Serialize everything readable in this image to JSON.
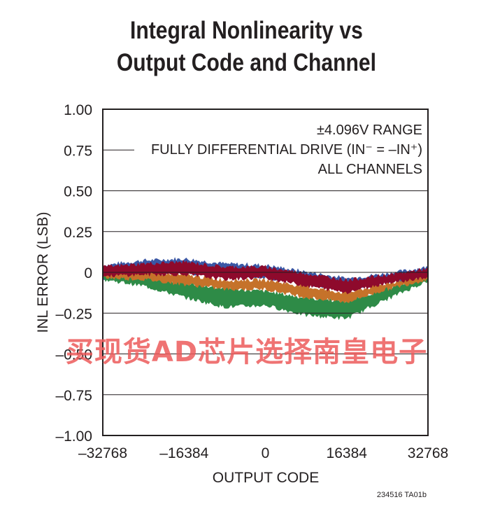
{
  "chart_data": {
    "type": "area",
    "title_lines": [
      "Integral Nonlinearity vs",
      "Output Code and Channel"
    ],
    "xlabel": "OUTPUT CODE",
    "ylabel": "INL ERROR (LSB)",
    "xlim": [
      -32768,
      32768
    ],
    "ylim": [
      -1.0,
      1.0
    ],
    "x_ticks": [
      -32768,
      -16384,
      0,
      16384,
      32768
    ],
    "x_tick_labels": [
      "–32768",
      "–16384",
      "0",
      "16384",
      "32768"
    ],
    "y_ticks": [
      1.0,
      0.75,
      0.5,
      0.25,
      0,
      -0.25,
      -0.5,
      -0.75,
      -1.0
    ],
    "y_tick_labels": [
      "1.00",
      "0.75",
      "0.50",
      "0.25",
      "0",
      "–0.25",
      "–0.50",
      "–0.75",
      "–1.00"
    ],
    "grid": true,
    "annotation_lines": [
      "±4.096V RANGE",
      "FULLY DIFFERENTIAL DRIVE (IN⁻ = –IN⁺)",
      "ALL CHANNELS"
    ],
    "series": [
      {
        "color": "#3a57a5",
        "x": [
          -32768,
          -24576,
          -16384,
          -8192,
          0,
          8192,
          16384,
          24576,
          32768
        ],
        "upper": [
          0.04,
          0.07,
          0.08,
          0.05,
          0.04,
          0.0,
          -0.04,
          -0.01,
          0.03
        ],
        "lower": [
          -0.04,
          -0.01,
          0.0,
          -0.02,
          -0.03,
          -0.07,
          -0.1,
          -0.06,
          -0.03
        ]
      },
      {
        "color": "#2e8b47",
        "x": [
          -32768,
          -24576,
          -16384,
          -8192,
          0,
          8192,
          16384,
          24576,
          32768
        ],
        "upper": [
          -0.01,
          -0.03,
          -0.07,
          -0.1,
          -0.12,
          -0.16,
          -0.18,
          -0.1,
          -0.03
        ],
        "lower": [
          -0.04,
          -0.08,
          -0.15,
          -0.21,
          -0.2,
          -0.26,
          -0.28,
          -0.16,
          -0.05
        ]
      },
      {
        "color": "#c5722a",
        "x": [
          -32768,
          -24576,
          -16384,
          -8192,
          0,
          8192,
          16384,
          24576,
          32768
        ],
        "upper": [
          0.01,
          0.0,
          -0.02,
          -0.05,
          -0.05,
          -0.09,
          -0.13,
          -0.07,
          -0.02
        ],
        "lower": [
          -0.03,
          -0.04,
          -0.07,
          -0.1,
          -0.1,
          -0.15,
          -0.18,
          -0.1,
          -0.04
        ]
      },
      {
        "color": "#8e0a2c",
        "x": [
          -32768,
          -24576,
          -16384,
          -8192,
          0,
          8192,
          16384,
          24576,
          32768
        ],
        "upper": [
          0.03,
          0.05,
          0.06,
          0.03,
          0.03,
          -0.01,
          -0.05,
          -0.02,
          0.02
        ],
        "lower": [
          -0.02,
          -0.01,
          -0.01,
          -0.04,
          -0.03,
          -0.08,
          -0.12,
          -0.06,
          -0.03
        ]
      }
    ],
    "figure_id": "234516 TA01b"
  },
  "watermark": "买现货AD芯片选择南皇电子"
}
